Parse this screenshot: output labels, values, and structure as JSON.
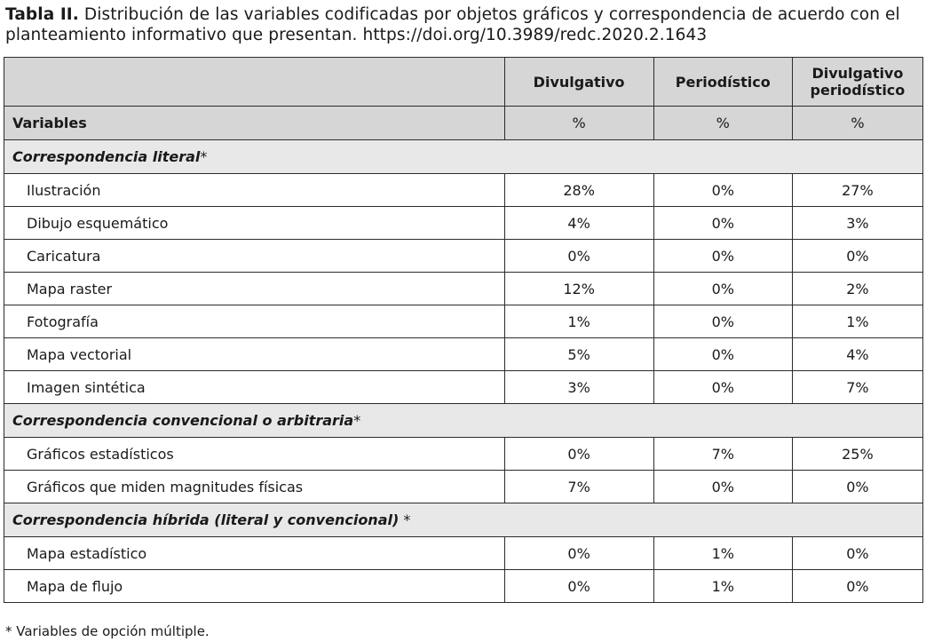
{
  "caption": {
    "label": "Tabla II.",
    "text": " Distribución de las variables codificadas por objetos gráficos y correspondencia de acuerdo con el planteamiento informativo que presentan. https://doi.org/10.3989/redc.2020.2.1643"
  },
  "table": {
    "columns": [
      "Divulgativo",
      "Periodístico",
      "Divulgativo periodístico"
    ],
    "variables_label": "Variables",
    "unit": "%",
    "sections": [
      {
        "title": "Correspondencia literal",
        "marker": "*",
        "rows": [
          {
            "label": "Ilustración",
            "values": [
              "28%",
              "0%",
              "27%"
            ]
          },
          {
            "label": "Dibujo esquemático",
            "values": [
              "4%",
              "0%",
              "3%"
            ]
          },
          {
            "label": "Caricatura",
            "values": [
              "0%",
              "0%",
              "0%"
            ]
          },
          {
            "label": "Mapa raster",
            "values": [
              "12%",
              "0%",
              "2%"
            ]
          },
          {
            "label": "Fotografía",
            "values": [
              "1%",
              "0%",
              "1%"
            ]
          },
          {
            "label": "Mapa vectorial",
            "values": [
              "5%",
              "0%",
              "4%"
            ]
          },
          {
            "label": "Imagen sintética",
            "values": [
              "3%",
              "0%",
              "7%"
            ]
          }
        ]
      },
      {
        "title": "Correspondencia convencional o arbitraria",
        "marker": "*",
        "rows": [
          {
            "label": "Gráficos estadísticos",
            "values": [
              "0%",
              "7%",
              "25%"
            ]
          },
          {
            "label": "Gráficos que miden magnitudes físicas",
            "values": [
              "7%",
              "0%",
              "0%"
            ]
          }
        ]
      },
      {
        "title": "Correspondencia híbrida (literal y convencional)",
        "marker": " *",
        "rows": [
          {
            "label": "Mapa estadístico",
            "values": [
              "0%",
              "1%",
              "0%"
            ]
          },
          {
            "label": "Mapa de flujo",
            "values": [
              "0%",
              "1%",
              "0%"
            ]
          }
        ]
      }
    ]
  },
  "footnote": "* Variables de opción múltiple."
}
